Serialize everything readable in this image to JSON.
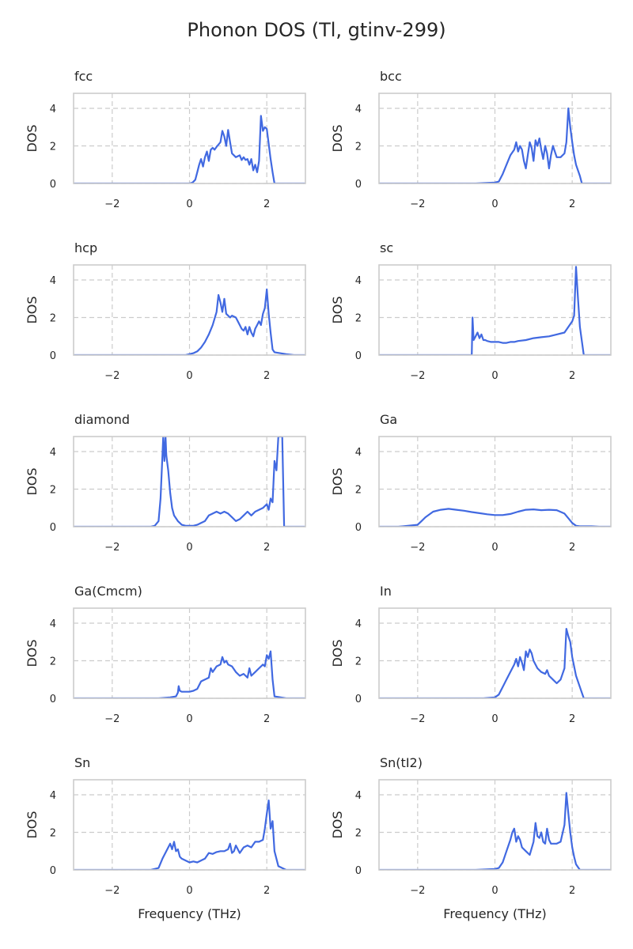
{
  "figure_title": "Phonon DOS (Tl, gtinv-299)",
  "colors": {
    "line": "#4169e1",
    "frame": "#cccccc",
    "grid": "#cccccc",
    "text": "#262626"
  },
  "chart_data": [
    {
      "type": "line",
      "title": "fcc",
      "xlabel": "",
      "ylabel": "DOS",
      "xlim": [
        -3,
        3
      ],
      "ylim": [
        0,
        4.8
      ],
      "xticks": [
        -2,
        0,
        2
      ],
      "yticks": [
        0,
        2,
        4
      ],
      "grid": true,
      "x": [
        -3,
        0.0,
        0.08,
        0.15,
        0.2,
        0.25,
        0.3,
        0.35,
        0.4,
        0.45,
        0.5,
        0.55,
        0.6,
        0.65,
        0.7,
        0.8,
        0.85,
        0.9,
        0.95,
        1.0,
        1.05,
        1.1,
        1.15,
        1.2,
        1.3,
        1.35,
        1.4,
        1.45,
        1.5,
        1.55,
        1.6,
        1.65,
        1.7,
        1.75,
        1.8,
        1.85,
        1.9,
        1.95,
        2.0,
        2.05,
        2.1,
        2.15,
        2.2,
        3
      ],
      "y": [
        0,
        0,
        0.05,
        0.2,
        0.6,
        1.0,
        1.3,
        0.9,
        1.4,
        1.7,
        1.2,
        1.8,
        1.9,
        1.8,
        1.95,
        2.2,
        2.8,
        2.5,
        2.0,
        2.85,
        2.2,
        1.6,
        1.5,
        1.4,
        1.5,
        1.25,
        1.4,
        1.25,
        1.3,
        1.0,
        1.3,
        0.7,
        1.0,
        0.6,
        1.2,
        3.6,
        2.8,
        3.0,
        2.9,
        2.1,
        1.3,
        0.6,
        0,
        0
      ]
    },
    {
      "type": "line",
      "title": "bcc",
      "xlabel": "",
      "ylabel": "DOS",
      "xlim": [
        -3,
        3
      ],
      "ylim": [
        0,
        4.8
      ],
      "xticks": [
        -2,
        0,
        2
      ],
      "yticks": [
        0,
        2,
        4
      ],
      "grid": true,
      "x": [
        -3,
        -0.5,
        0.0,
        0.1,
        0.2,
        0.3,
        0.4,
        0.5,
        0.55,
        0.6,
        0.65,
        0.7,
        0.75,
        0.8,
        0.85,
        0.9,
        0.95,
        1.0,
        1.05,
        1.1,
        1.15,
        1.2,
        1.25,
        1.3,
        1.35,
        1.4,
        1.45,
        1.5,
        1.55,
        1.6,
        1.7,
        1.8,
        1.85,
        1.9,
        1.95,
        2.0,
        2.05,
        2.1,
        2.2,
        2.25,
        3
      ],
      "y": [
        0,
        0,
        0.05,
        0.1,
        0.5,
        1.0,
        1.5,
        1.8,
        2.2,
        1.7,
        2.0,
        1.8,
        1.2,
        0.8,
        1.5,
        2.2,
        1.9,
        1.2,
        2.3,
        2.0,
        2.4,
        1.8,
        1.3,
        2.0,
        1.6,
        0.8,
        1.5,
        2.0,
        1.7,
        1.4,
        1.4,
        1.6,
        2.2,
        4.0,
        3.0,
        2.2,
        1.5,
        1.0,
        0.4,
        0,
        0
      ]
    },
    {
      "type": "line",
      "title": "hcp",
      "xlabel": "",
      "ylabel": "DOS",
      "xlim": [
        -3,
        3
      ],
      "ylim": [
        0,
        4.8
      ],
      "xticks": [
        -2,
        0,
        2
      ],
      "yticks": [
        0,
        2,
        4
      ],
      "grid": true,
      "x": [
        -3,
        -0.1,
        0.0,
        0.1,
        0.2,
        0.3,
        0.4,
        0.5,
        0.6,
        0.7,
        0.75,
        0.8,
        0.85,
        0.9,
        0.95,
        1.0,
        1.05,
        1.1,
        1.2,
        1.3,
        1.35,
        1.4,
        1.45,
        1.5,
        1.55,
        1.6,
        1.65,
        1.7,
        1.75,
        1.8,
        1.85,
        1.9,
        1.95,
        2.0,
        2.05,
        2.1,
        2.15,
        2.2,
        2.5,
        2.7,
        3
      ],
      "y": [
        0,
        0,
        0.05,
        0.1,
        0.2,
        0.4,
        0.7,
        1.1,
        1.6,
        2.3,
        3.2,
        2.8,
        2.3,
        3.0,
        2.2,
        2.1,
        2.0,
        2.1,
        2.0,
        1.6,
        1.4,
        1.3,
        1.5,
        1.1,
        1.5,
        1.2,
        1.0,
        1.4,
        1.6,
        1.8,
        1.6,
        2.2,
        2.5,
        3.5,
        2.2,
        1.2,
        0.3,
        0.15,
        0.05,
        0,
        0
      ]
    },
    {
      "type": "line",
      "title": "sc",
      "xlabel": "",
      "ylabel": "DOS",
      "xlim": [
        -3,
        3
      ],
      "ylim": [
        0,
        4.8
      ],
      "xticks": [
        -2,
        0,
        2
      ],
      "yticks": [
        0,
        2,
        4
      ],
      "grid": true,
      "x": [
        -3,
        -0.6,
        -0.58,
        -0.55,
        -0.5,
        -0.45,
        -0.4,
        -0.35,
        -0.3,
        -0.25,
        -0.2,
        -0.1,
        0.0,
        0.1,
        0.2,
        0.3,
        0.4,
        0.5,
        0.6,
        0.8,
        1.0,
        1.2,
        1.4,
        1.6,
        1.8,
        1.9,
        2.0,
        2.05,
        2.1,
        2.15,
        2.2,
        2.3,
        3
      ],
      "y": [
        0,
        0,
        2.0,
        0.8,
        1.0,
        1.2,
        0.9,
        1.1,
        0.8,
        0.8,
        0.75,
        0.7,
        0.7,
        0.7,
        0.65,
        0.65,
        0.7,
        0.7,
        0.75,
        0.8,
        0.9,
        0.95,
        1.0,
        1.1,
        1.2,
        1.5,
        1.8,
        2.1,
        4.7,
        3.0,
        1.5,
        0,
        0
      ]
    },
    {
      "type": "line",
      "title": "diamond",
      "xlabel": "",
      "ylabel": "DOS",
      "xlim": [
        -3,
        3
      ],
      "ylim": [
        0,
        4.8
      ],
      "xticks": [
        -2,
        0,
        2
      ],
      "yticks": [
        0,
        2,
        4
      ],
      "grid": true,
      "x": [
        -3,
        -1.0,
        -0.9,
        -0.8,
        -0.75,
        -0.7,
        -0.68,
        -0.65,
        -0.62,
        -0.6,
        -0.55,
        -0.5,
        -0.45,
        -0.4,
        -0.3,
        -0.2,
        -0.1,
        0.0,
        0.1,
        0.2,
        0.3,
        0.4,
        0.5,
        0.6,
        0.7,
        0.8,
        0.9,
        1.0,
        1.1,
        1.2,
        1.3,
        1.4,
        1.5,
        1.6,
        1.7,
        1.8,
        1.9,
        2.0,
        2.05,
        2.1,
        2.15,
        2.2,
        2.25,
        2.3,
        2.4,
        2.45,
        3
      ],
      "y": [
        0,
        0,
        0.05,
        0.3,
        1.5,
        3.8,
        4.8,
        3.5,
        4.8,
        3.8,
        3.0,
        1.8,
        1.0,
        0.6,
        0.3,
        0.1,
        0.05,
        0.05,
        0.05,
        0.1,
        0.2,
        0.3,
        0.6,
        0.7,
        0.8,
        0.7,
        0.8,
        0.7,
        0.5,
        0.3,
        0.4,
        0.6,
        0.8,
        0.6,
        0.8,
        0.9,
        1.0,
        1.2,
        0.9,
        1.5,
        1.3,
        3.5,
        3.0,
        4.8,
        4.8,
        0,
        0
      ]
    },
    {
      "type": "line",
      "title": "Ga",
      "xlabel": "",
      "ylabel": "DOS",
      "xlim": [
        -3,
        3
      ],
      "ylim": [
        0,
        4.8
      ],
      "xticks": [
        -2,
        0,
        2
      ],
      "yticks": [
        0,
        2,
        4
      ],
      "grid": true,
      "x": [
        -3,
        -2.5,
        -2.0,
        -1.9,
        -1.8,
        -1.6,
        -1.4,
        -1.2,
        -1.0,
        -0.8,
        -0.6,
        -0.4,
        -0.2,
        0.0,
        0.2,
        0.4,
        0.6,
        0.8,
        1.0,
        1.2,
        1.4,
        1.6,
        1.8,
        1.9,
        2.0,
        2.1,
        2.2,
        2.5,
        2.7,
        3
      ],
      "y": [
        0,
        0,
        0.1,
        0.3,
        0.5,
        0.8,
        0.9,
        0.95,
        0.9,
        0.85,
        0.78,
        0.72,
        0.66,
        0.62,
        0.62,
        0.68,
        0.8,
        0.9,
        0.92,
        0.88,
        0.9,
        0.88,
        0.7,
        0.45,
        0.2,
        0.05,
        0.02,
        0.02,
        0,
        0
      ]
    },
    {
      "type": "line",
      "title": "Ga(Cmcm)",
      "xlabel": "",
      "ylabel": "DOS",
      "xlim": [
        -3,
        3
      ],
      "ylim": [
        0,
        4.8
      ],
      "xticks": [
        -2,
        0,
        2
      ],
      "yticks": [
        0,
        2,
        4
      ],
      "grid": true,
      "x": [
        -3,
        -0.8,
        -0.5,
        -0.35,
        -0.3,
        -0.28,
        -0.25,
        -0.2,
        0.0,
        0.1,
        0.2,
        0.3,
        0.4,
        0.5,
        0.55,
        0.6,
        0.7,
        0.8,
        0.85,
        0.9,
        0.95,
        1.0,
        1.1,
        1.2,
        1.3,
        1.4,
        1.5,
        1.55,
        1.6,
        1.7,
        1.8,
        1.9,
        1.95,
        2.0,
        2.05,
        2.1,
        2.15,
        2.2,
        2.5,
        3
      ],
      "y": [
        0,
        0,
        0.05,
        0.1,
        0.3,
        0.65,
        0.4,
        0.35,
        0.35,
        0.4,
        0.5,
        0.9,
        1.0,
        1.1,
        1.6,
        1.4,
        1.7,
        1.8,
        2.2,
        1.9,
        2.0,
        1.8,
        1.7,
        1.4,
        1.2,
        1.3,
        1.1,
        1.6,
        1.2,
        1.4,
        1.6,
        1.8,
        1.7,
        2.3,
        2.1,
        2.5,
        1.0,
        0.1,
        0,
        0
      ]
    },
    {
      "type": "line",
      "title": "In",
      "xlabel": "",
      "ylabel": "DOS",
      "xlim": [
        -3,
        3
      ],
      "ylim": [
        0,
        4.8
      ],
      "xticks": [
        -2,
        0,
        2
      ],
      "yticks": [
        0,
        2,
        4
      ],
      "grid": true,
      "x": [
        -3,
        -0.3,
        0.0,
        0.1,
        0.2,
        0.3,
        0.4,
        0.5,
        0.55,
        0.6,
        0.65,
        0.7,
        0.75,
        0.8,
        0.85,
        0.9,
        0.95,
        1.0,
        1.1,
        1.2,
        1.3,
        1.35,
        1.4,
        1.5,
        1.6,
        1.7,
        1.8,
        1.85,
        1.9,
        1.95,
        2.0,
        2.1,
        2.2,
        2.3,
        3
      ],
      "y": [
        0,
        0,
        0.05,
        0.2,
        0.6,
        1.0,
        1.4,
        1.8,
        2.1,
        1.7,
        2.2,
        1.9,
        1.5,
        2.5,
        2.2,
        2.6,
        2.4,
        2.0,
        1.6,
        1.4,
        1.3,
        1.5,
        1.2,
        1.0,
        0.8,
        1.0,
        1.6,
        3.7,
        3.3,
        3.0,
        2.2,
        1.2,
        0.6,
        0,
        0
      ]
    },
    {
      "type": "line",
      "title": "Sn",
      "xlabel": "Frequency (THz)",
      "ylabel": "DOS",
      "xlim": [
        -3,
        3
      ],
      "ylim": [
        0,
        4.8
      ],
      "xticks": [
        -2,
        0,
        2
      ],
      "yticks": [
        0,
        2,
        4
      ],
      "grid": true,
      "x": [
        -3,
        -1.0,
        -0.8,
        -0.7,
        -0.6,
        -0.5,
        -0.45,
        -0.4,
        -0.35,
        -0.3,
        -0.25,
        -0.2,
        -0.1,
        0.0,
        0.1,
        0.2,
        0.3,
        0.4,
        0.5,
        0.6,
        0.7,
        0.8,
        0.9,
        1.0,
        1.05,
        1.1,
        1.15,
        1.2,
        1.3,
        1.4,
        1.5,
        1.6,
        1.7,
        1.8,
        1.9,
        1.95,
        2.0,
        2.05,
        2.1,
        2.15,
        2.2,
        2.3,
        2.5,
        3
      ],
      "y": [
        0,
        0,
        0.1,
        0.6,
        1.0,
        1.4,
        1.1,
        1.5,
        1.0,
        1.1,
        0.7,
        0.6,
        0.5,
        0.4,
        0.45,
        0.4,
        0.5,
        0.6,
        0.9,
        0.85,
        0.95,
        1.0,
        1.0,
        1.1,
        1.4,
        0.9,
        1.0,
        1.3,
        0.9,
        1.2,
        1.3,
        1.2,
        1.5,
        1.5,
        1.6,
        2.2,
        3.0,
        3.7,
        2.2,
        2.6,
        1.0,
        0.2,
        0,
        0
      ]
    },
    {
      "type": "line",
      "title": "Sn(tI2)",
      "xlabel": "Frequency (THz)",
      "ylabel": "DOS",
      "xlim": [
        -3,
        3
      ],
      "ylim": [
        0,
        4.8
      ],
      "xticks": [
        -2,
        0,
        2
      ],
      "yticks": [
        0,
        2,
        4
      ],
      "grid": true,
      "x": [
        -3,
        -0.5,
        0.0,
        0.1,
        0.2,
        0.3,
        0.4,
        0.45,
        0.5,
        0.55,
        0.6,
        0.65,
        0.7,
        0.8,
        0.9,
        1.0,
        1.05,
        1.1,
        1.15,
        1.2,
        1.25,
        1.3,
        1.35,
        1.4,
        1.45,
        1.5,
        1.6,
        1.7,
        1.8,
        1.85,
        1.9,
        1.95,
        2.0,
        2.05,
        2.1,
        2.2,
        3
      ],
      "y": [
        0,
        0,
        0.05,
        0.1,
        0.4,
        1.0,
        1.6,
        2.0,
        2.2,
        1.5,
        1.8,
        1.6,
        1.2,
        1.0,
        0.8,
        1.5,
        2.5,
        1.8,
        1.7,
        2.0,
        1.5,
        1.4,
        2.2,
        1.6,
        1.4,
        1.4,
        1.4,
        1.5,
        2.4,
        4.1,
        3.0,
        2.0,
        1.2,
        0.7,
        0.3,
        0,
        0
      ]
    }
  ]
}
